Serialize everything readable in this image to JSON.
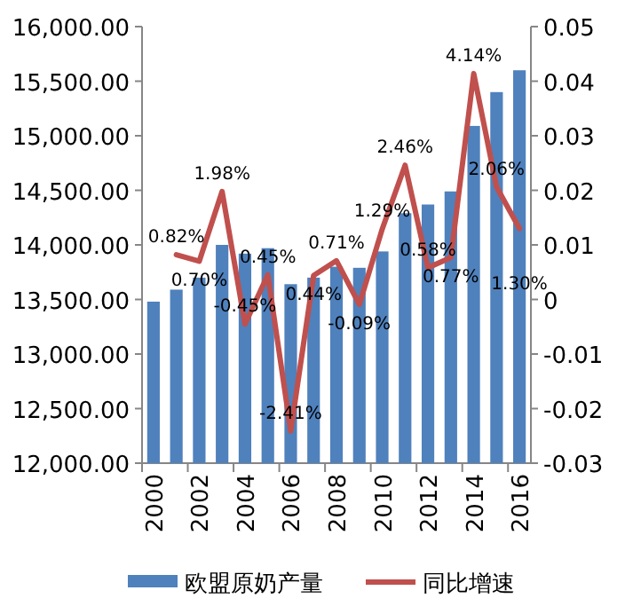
{
  "chart_data": {
    "type": "bar",
    "categories": [
      "2000",
      null,
      "2002",
      null,
      "2004",
      null,
      "2006",
      null,
      "2008",
      null,
      "2010",
      null,
      "2012",
      null,
      "2014",
      null,
      "2016"
    ],
    "series": [
      {
        "name": "欧盟原奶产量",
        "color": "#4f81bd",
        "values": [
          13480,
          13590,
          13700,
          14000,
          13920,
          13970,
          13640,
          13700,
          13800,
          13790,
          13940,
          14290,
          14370,
          14490,
          15090,
          15400,
          15600
        ]
      },
      {
        "name": "同比增速",
        "type": "line",
        "axis": "y2",
        "color": "#c0504d",
        "values": [
          null,
          0.0082,
          0.007,
          0.0198,
          -0.0045,
          0.0045,
          -0.0241,
          0.0044,
          0.0071,
          -0.0009,
          0.0129,
          0.0246,
          0.0058,
          0.0077,
          0.0414,
          0.0206,
          0.013
        ],
        "value_labels": [
          null,
          "0.82%",
          "0.70%",
          "1.98%",
          "-0.45%",
          "0.45%",
          "-2.41%",
          "0.44%",
          "0.71%",
          "-0.09%",
          "1.29%",
          "2.46%",
          "0.58%",
          "0.77%",
          "4.14%",
          "2.06%",
          "1.30%"
        ]
      }
    ],
    "ylim": [
      12000,
      16000
    ],
    "yticks": [
      {
        "value": 12000,
        "label": "12,000.00"
      },
      {
        "value": 12500,
        "label": "12,500.00"
      },
      {
        "value": 13000,
        "label": "13,000.00"
      },
      {
        "value": 13500,
        "label": "13,500.00"
      },
      {
        "value": 14000,
        "label": "14,000.00"
      },
      {
        "value": 14500,
        "label": "14,500.00"
      },
      {
        "value": 15000,
        "label": "15,000.00"
      },
      {
        "value": 15500,
        "label": "15,500.00"
      },
      {
        "value": 16000,
        "label": "16,000.00"
      }
    ],
    "y2lim": [
      -0.03,
      0.05
    ],
    "y2ticks": [
      -0.03,
      -0.02,
      -0.01,
      0,
      0.01,
      0.02,
      0.03,
      0.04,
      0.05
    ],
    "legend": "bottom",
    "grid": false
  }
}
